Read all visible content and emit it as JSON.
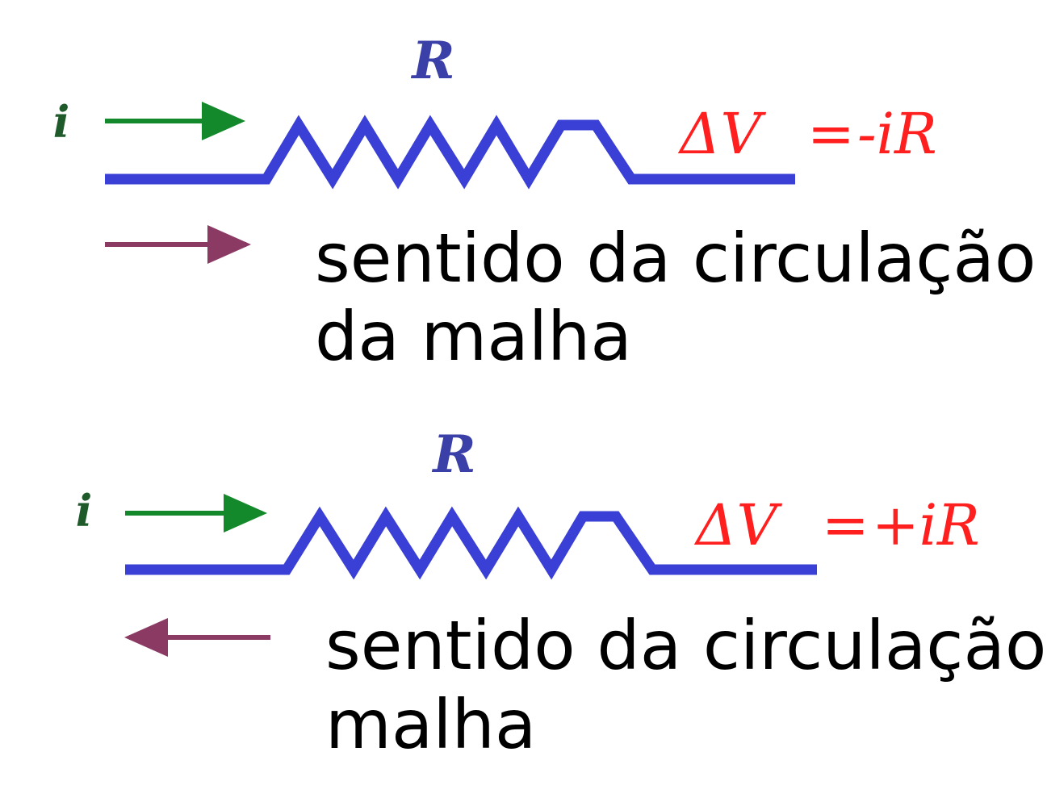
{
  "colors": {
    "wire": "#3a3fd6",
    "current_arrow": "#13892c",
    "circulation_arrow": "#8a3a63",
    "label_R": "#3b3fa8",
    "equation": "#ff1f1f",
    "caption": "#000000"
  },
  "panels": [
    {
      "current_label": "i",
      "resistor_label": "R",
      "equation": {
        "lhs": "ΔV",
        "equals": "=",
        "rhs": "-iR"
      },
      "circulation_direction": "right",
      "caption_lines": [
        "sentido da circulação",
        "da malha"
      ]
    },
    {
      "current_label": "i",
      "resistor_label": "R",
      "equation": {
        "lhs": "ΔV",
        "equals": "=",
        "rhs": "+iR"
      },
      "circulation_direction": "left",
      "caption_lines": [
        "sentido da circulação",
        "malha"
      ]
    }
  ]
}
